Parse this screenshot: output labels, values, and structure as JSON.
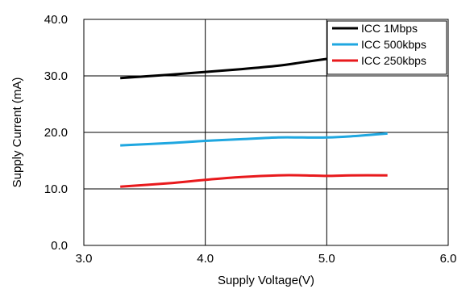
{
  "chart_data": {
    "type": "line",
    "title": "",
    "xlabel": "Supply Voltage(V)",
    "ylabel": "Supply Current (mA)",
    "xlim": [
      3.0,
      6.0
    ],
    "ylim": [
      0.0,
      40.0
    ],
    "x_ticks": [
      "3.0",
      "4.0",
      "5.0",
      "6.0"
    ],
    "y_ticks": [
      "0.0",
      "10.0",
      "20.0",
      "30.0",
      "40.0"
    ],
    "x_tick_values": [
      3.0,
      4.0,
      5.0,
      6.0
    ],
    "y_tick_values": [
      0.0,
      10.0,
      20.0,
      30.0,
      40.0
    ],
    "grid": true,
    "legend_position": "top-right",
    "series": [
      {
        "name": "ICC 1Mbps",
        "color": "#000000",
        "x": [
          3.3,
          3.7,
          4.0,
          4.3,
          4.6,
          4.8,
          5.0,
          5.2
        ],
        "y": [
          29.6,
          30.2,
          30.7,
          31.2,
          31.8,
          32.4,
          33.0,
          33.4
        ]
      },
      {
        "name": "ICC 500kbps",
        "color": "#1fa7e0",
        "x": [
          3.3,
          3.7,
          4.0,
          4.3,
          4.6,
          4.8,
          5.0,
          5.2,
          5.5
        ],
        "y": [
          17.7,
          18.1,
          18.5,
          18.8,
          19.1,
          19.1,
          19.1,
          19.3,
          19.8
        ]
      },
      {
        "name": "ICC 250kbps",
        "color": "#e8191c",
        "x": [
          3.3,
          3.7,
          4.0,
          4.3,
          4.6,
          4.8,
          5.0,
          5.2,
          5.5
        ],
        "y": [
          10.4,
          11.0,
          11.6,
          12.1,
          12.4,
          12.4,
          12.3,
          12.4,
          12.4
        ]
      }
    ]
  }
}
